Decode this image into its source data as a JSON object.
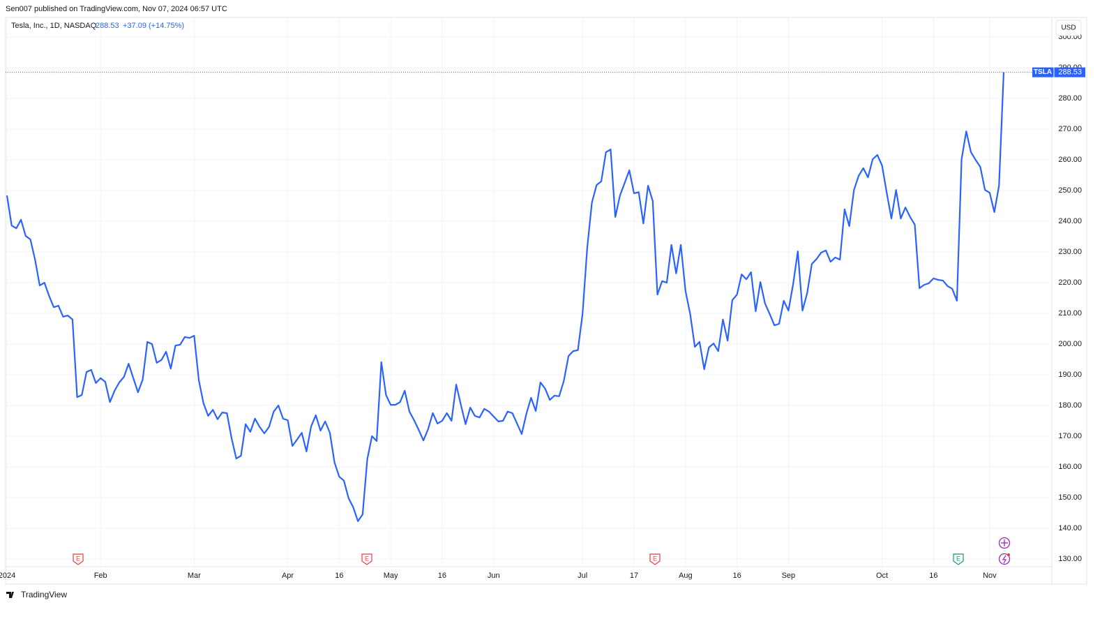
{
  "chart_data": {
    "type": "line",
    "publisher": "Sen007 published on TradingView.com, Nov 07, 2024 06:57 UTC",
    "title": "Tesla, Inc., 1D, NASDAQ",
    "change": "+37.09 (+14.75%)",
    "currency": "USD",
    "brand": "TradingView",
    "events": [
      "E",
      "E",
      "E",
      "E"
    ],
    "grid": true,
    "categories": [
      "2024",
      null,
      null,
      null,
      null,
      null,
      null,
      null,
      null,
      null,
      null,
      null,
      null,
      null,
      null,
      null,
      null,
      null,
      null,
      null,
      "Feb",
      null,
      null,
      null,
      null,
      null,
      null,
      null,
      null,
      null,
      null,
      null,
      null,
      null,
      null,
      null,
      null,
      null,
      null,
      null,
      "Mar",
      null,
      null,
      null,
      null,
      null,
      null,
      null,
      null,
      null,
      null,
      null,
      null,
      null,
      null,
      null,
      null,
      null,
      null,
      null,
      "Apr",
      null,
      null,
      null,
      null,
      null,
      null,
      null,
      null,
      null,
      null,
      "16",
      null,
      null,
      null,
      null,
      null,
      null,
      null,
      null,
      null,
      null,
      "May",
      null,
      null,
      null,
      null,
      null,
      null,
      null,
      null,
      null,
      null,
      "16",
      null,
      null,
      null,
      null,
      null,
      null,
      null,
      null,
      null,
      null,
      "Jun",
      null,
      null,
      null,
      null,
      null,
      null,
      null,
      null,
      null,
      null,
      null,
      null,
      null,
      null,
      null,
      null,
      null,
      null,
      "Jul",
      null,
      null,
      null,
      null,
      null,
      null,
      null,
      null,
      null,
      null,
      "17",
      null,
      null,
      null,
      null,
      null,
      null,
      null,
      null,
      null,
      null,
      "Aug",
      null,
      null,
      null,
      null,
      null,
      null,
      null,
      null,
      null,
      null,
      "16",
      null,
      null,
      null,
      null,
      null,
      null,
      null,
      null,
      null,
      null,
      "Sep",
      null,
      null,
      null,
      null,
      null,
      null,
      null,
      null,
      null,
      null,
      null,
      null,
      null,
      null,
      null,
      null,
      null,
      null,
      null,
      "Oct",
      null,
      null,
      null,
      null,
      null,
      null,
      null,
      null,
      null,
      null,
      "16",
      null,
      null,
      null,
      null,
      null,
      null,
      null,
      null,
      null,
      null,
      null,
      "Nov",
      null,
      null,
      null
    ],
    "series": [
      {
        "name": "TSLA",
        "color": "#2962ff",
        "values": [
          248.4,
          238.6,
          237.7,
          240.5,
          235.2,
          234.1,
          227.5,
          219.1,
          220.0,
          215.7,
          212.0,
          212.5,
          208.9,
          209.3,
          208.0,
          182.7,
          183.4,
          190.9,
          191.6,
          187.3,
          188.9,
          187.7,
          181.1,
          184.8,
          187.5,
          189.3,
          193.6,
          188.9,
          184.3,
          188.4,
          200.7,
          200.0,
          193.9,
          194.8,
          197.5,
          192.0,
          199.5,
          199.8,
          202.3,
          202.0,
          202.7,
          188.2,
          180.7,
          176.6,
          178.6,
          175.5,
          177.7,
          177.5,
          169.3,
          162.7,
          163.6,
          173.9,
          171.4,
          175.7,
          173.0,
          170.9,
          173.0,
          178.0,
          180.0,
          175.7,
          175.2,
          166.8,
          168.9,
          171.1,
          165.0,
          173.2,
          176.8,
          171.8,
          174.8,
          171.1,
          161.4,
          156.8,
          155.5,
          149.8,
          146.8,
          142.3,
          144.5,
          162.5,
          170.0,
          168.4,
          194.1,
          183.4,
          180.2,
          180.2,
          181.1,
          184.8,
          178.0,
          175.2,
          172.0,
          168.6,
          172.3,
          177.5,
          174.1,
          175.0,
          177.5,
          175.0,
          186.8,
          180.2,
          173.9,
          179.3,
          176.6,
          176.1,
          178.9,
          178.0,
          176.4,
          174.8,
          175.0,
          178.0,
          177.5,
          174.1,
          170.7,
          177.3,
          182.5,
          178.2,
          187.5,
          185.5,
          181.8,
          183.2,
          183.0,
          188.0,
          196.1,
          197.7,
          198.0,
          209.8,
          231.4,
          246.1,
          251.8,
          253.0,
          262.5,
          263.4,
          241.4,
          248.4,
          252.5,
          256.6,
          249.1,
          249.5,
          239.3,
          251.6,
          246.6,
          216.1,
          220.5,
          220.0,
          232.3,
          223.0,
          232.3,
          217.3,
          209.8,
          199.1,
          200.7,
          191.8,
          198.9,
          200.2,
          197.7,
          208.0,
          201.1,
          214.3,
          216.1,
          222.7,
          221.1,
          223.4,
          210.7,
          220.2,
          213.2,
          209.8,
          206.1,
          206.6,
          214.1,
          210.9,
          219.5,
          230.2,
          210.9,
          216.6,
          226.1,
          227.7,
          229.8,
          230.5,
          226.8,
          228.2,
          227.5,
          243.9,
          238.4,
          250.2,
          254.8,
          257.3,
          254.3,
          260.2,
          261.6,
          258.2,
          249.3,
          240.9,
          250.2,
          240.9,
          244.5,
          241.4,
          238.9,
          218.2,
          219.3,
          219.8,
          221.4,
          220.9,
          220.7,
          218.9,
          218.0,
          214.1,
          260.2,
          269.3,
          262.5,
          260.0,
          257.7,
          250.2,
          249.3,
          243.0,
          251.6,
          288.53
        ]
      }
    ],
    "ylim": [
      121.8,
      306.4
    ],
    "yticks": [
      {
        "value": 130,
        "label": "130.00"
      },
      {
        "value": 140,
        "label": "140.00"
      },
      {
        "value": 150,
        "label": "150.00"
      },
      {
        "value": 160,
        "label": "160.00"
      },
      {
        "value": 170,
        "label": "170.00"
      },
      {
        "value": 180,
        "label": "180.00"
      },
      {
        "value": 190,
        "label": "190.00"
      },
      {
        "value": 200,
        "label": "200.00"
      },
      {
        "value": 210,
        "label": "210.00"
      },
      {
        "value": 220,
        "label": "220.00"
      },
      {
        "value": 230,
        "label": "230.00"
      },
      {
        "value": 240,
        "label": "240.00"
      },
      {
        "value": 250,
        "label": "250.00"
      },
      {
        "value": 260,
        "label": "260.00"
      },
      {
        "value": 270,
        "label": "270.00"
      },
      {
        "value": 280,
        "label": "280.00"
      },
      {
        "value": 290,
        "label": "290.00"
      },
      {
        "value": 300,
        "label": "300.00"
      }
    ]
  }
}
